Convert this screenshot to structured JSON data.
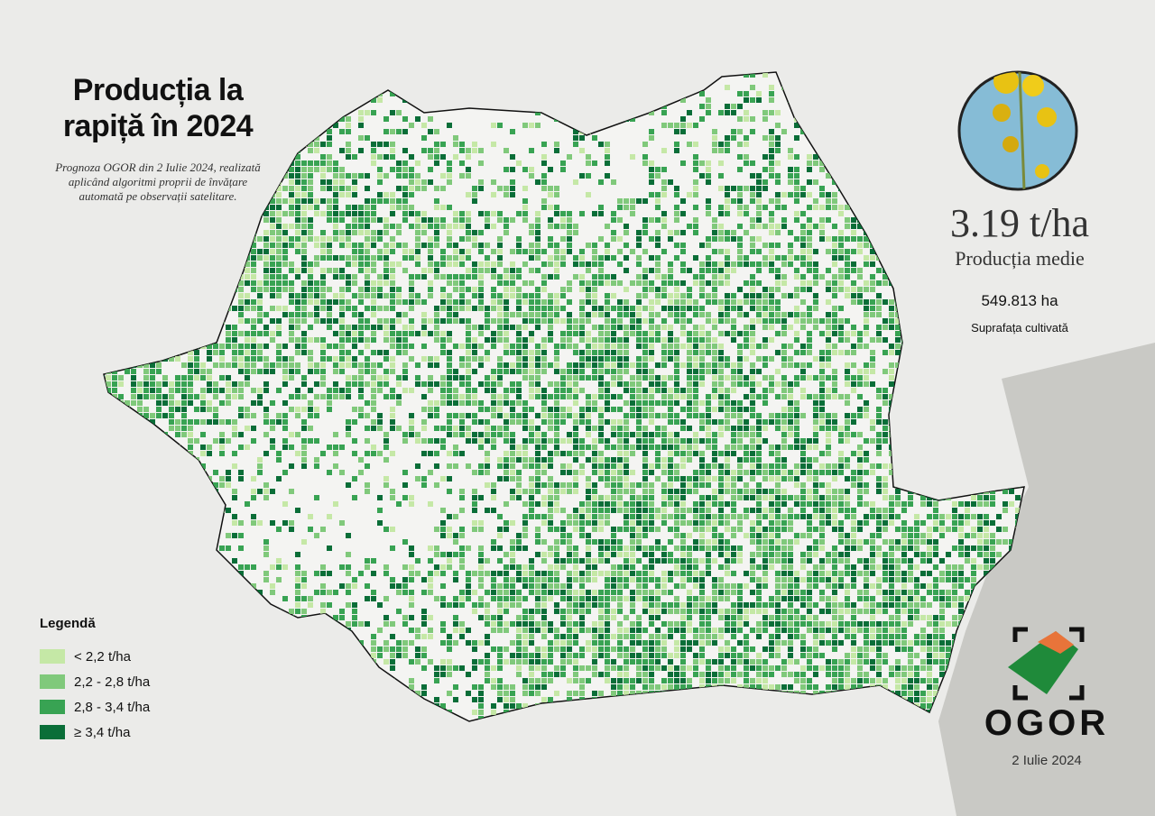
{
  "title": "Producția la rapiță în 2024",
  "subtitle": "Prognoza OGOR din 2 Iulie 2024, realizată aplicând algoritmi proprii de învățare automată pe observații satelitare.",
  "stats": {
    "yield": "3.19 t/ha",
    "yield_label": "Producția medie",
    "area": "549.813 ha",
    "area_label": "Suprafața cultivată"
  },
  "legend": {
    "title": "Legendă",
    "items": [
      {
        "label": "< 2,2 t/ha",
        "color": "#c5e8a6"
      },
      {
        "label": "2,2 - 2,8 t/ha",
        "color": "#80c97b"
      },
      {
        "label": "2,8 - 3,4 t/ha",
        "color": "#38a353"
      },
      {
        "label": "≥ 3,4 t/ha",
        "color": "#0a6e38"
      }
    ]
  },
  "brand": "OGOR",
  "date": "2 Iulie 2024"
}
